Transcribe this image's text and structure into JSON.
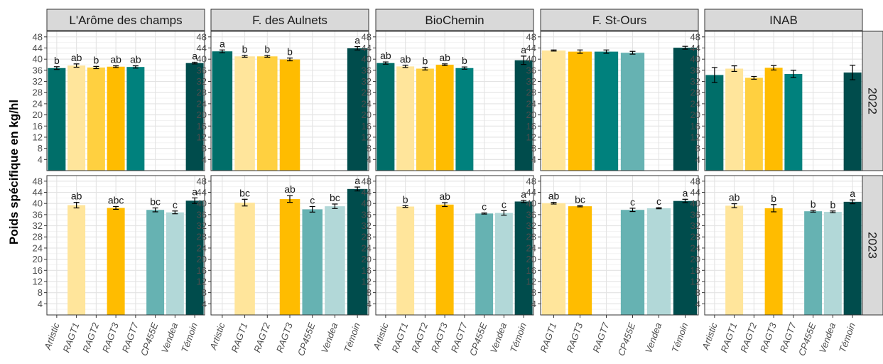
{
  "chart_data": {
    "type": "bar",
    "ylabel": "Poids spécifique en kg/hl",
    "ylim": [
      0,
      50
    ],
    "yticks": [
      4,
      8,
      12,
      16,
      20,
      24,
      28,
      32,
      36,
      40,
      44,
      48
    ],
    "grid": true,
    "columns": [
      "L'Arôme des champs",
      "F. des Aulnets",
      "BioChemin",
      "F. St-Ours",
      "INAB"
    ],
    "rows": [
      "2022",
      "2023"
    ],
    "varieties_by_column": [
      [
        "Artistic",
        "RAGT1",
        "RAGT2",
        "RAGT3",
        "RAGT7",
        "CP455E",
        "Vendea",
        "Témoin"
      ],
      [
        "Artistic",
        "RAGT1",
        "RAGT2",
        "RAGT3",
        "CP455E",
        "Vendea",
        "Témoin"
      ],
      [
        "Artistic",
        "RAGT1",
        "RAGT2",
        "RAGT3",
        "RAGT7",
        "CP455E",
        "Vendea",
        "Témoin"
      ],
      [
        "RAGT1",
        "RAGT3",
        "RAGT7",
        "CP455E",
        "Vendea",
        "Témoin"
      ],
      [
        "Artistic",
        "RAGT1",
        "RAGT2",
        "RAGT3",
        "RAGT7",
        "CP455E",
        "Vendea",
        "Témoin"
      ]
    ],
    "colors": {
      "Artistic": "#006e69",
      "RAGT1": "#ffe59b",
      "RAGT2": "#ffd040",
      "RAGT3": "#ffbc00",
      "RAGT7": "#00817d",
      "CP455E": "#66b2b2",
      "Vendea": "#b2d8d8",
      "Témoin": "#004c4c"
    },
    "panels": [
      {
        "column": 0,
        "row": 0,
        "bars": [
          {
            "variety": "Artistic",
            "value": 36.8,
            "err": 0.5,
            "label": "b"
          },
          {
            "variety": "RAGT1",
            "value": 37.7,
            "err": 0.6,
            "label": "ab"
          },
          {
            "variety": "RAGT2",
            "value": 37.0,
            "err": 0.4,
            "label": "b"
          },
          {
            "variety": "RAGT3",
            "value": 37.3,
            "err": 0.3,
            "label": "ab"
          },
          {
            "variety": "RAGT7",
            "value": 37.2,
            "err": 0.4,
            "label": "ab"
          },
          {
            "variety": "Témoin",
            "value": 38.6,
            "err": 0.3,
            "label": "a"
          }
        ]
      },
      {
        "column": 1,
        "row": 0,
        "bars": [
          {
            "variety": "Artistic",
            "value": 42.8,
            "err": 0.5,
            "label": "a"
          },
          {
            "variety": "RAGT1",
            "value": 41.0,
            "err": 0.3,
            "label": "b"
          },
          {
            "variety": "RAGT2",
            "value": 41.0,
            "err": 0.3,
            "label": "b"
          },
          {
            "variety": "RAGT3",
            "value": 39.9,
            "err": 0.5,
            "label": "b"
          },
          {
            "variety": "Témoin",
            "value": 43.9,
            "err": 0.6,
            "label": "a"
          }
        ]
      },
      {
        "column": 2,
        "row": 0,
        "bars": [
          {
            "variety": "Artistic",
            "value": 38.6,
            "err": 0.4,
            "label": "ab"
          },
          {
            "variety": "RAGT1",
            "value": 37.4,
            "err": 0.4,
            "label": "ab"
          },
          {
            "variety": "RAGT2",
            "value": 36.6,
            "err": 0.5,
            "label": "b"
          },
          {
            "variety": "RAGT3",
            "value": 38.0,
            "err": 0.3,
            "label": "ab"
          },
          {
            "variety": "RAGT7",
            "value": 36.8,
            "err": 0.4,
            "label": "b"
          },
          {
            "variety": "Témoin",
            "value": 39.6,
            "err": 1.5,
            "label": "a"
          }
        ]
      },
      {
        "column": 3,
        "row": 0,
        "bars": [
          {
            "variety": "RAGT1",
            "value": 43.1,
            "err": 0.2,
            "label": ""
          },
          {
            "variety": "RAGT3",
            "value": 42.7,
            "err": 0.6,
            "label": ""
          },
          {
            "variety": "RAGT7",
            "value": 42.7,
            "err": 0.6,
            "label": ""
          },
          {
            "variety": "CP455E",
            "value": 42.3,
            "err": 0.5,
            "label": ""
          },
          {
            "variety": "Témoin",
            "value": 44.1,
            "err": 0.5,
            "label": ""
          }
        ]
      },
      {
        "column": 4,
        "row": 0,
        "bars": [
          {
            "variety": "Artistic",
            "value": 34.3,
            "err": 2.7,
            "label": ""
          },
          {
            "variety": "RAGT1",
            "value": 36.6,
            "err": 1.0,
            "label": ""
          },
          {
            "variety": "RAGT2",
            "value": 33.3,
            "err": 0.5,
            "label": ""
          },
          {
            "variety": "RAGT3",
            "value": 36.9,
            "err": 0.8,
            "label": ""
          },
          {
            "variety": "RAGT7",
            "value": 34.7,
            "err": 1.3,
            "label": ""
          },
          {
            "variety": "Témoin",
            "value": 35.2,
            "err": 2.6,
            "label": ""
          }
        ]
      },
      {
        "column": 0,
        "row": 1,
        "bars": [
          {
            "variety": "RAGT1",
            "value": 39.4,
            "err": 1.0,
            "label": "ab"
          },
          {
            "variety": "RAGT3",
            "value": 38.4,
            "err": 0.5,
            "label": "abc"
          },
          {
            "variety": "CP455E",
            "value": 37.7,
            "err": 0.7,
            "label": "bc"
          },
          {
            "variety": "Vendea",
            "value": 36.8,
            "err": 0.5,
            "label": "c"
          },
          {
            "variety": "Témoin",
            "value": 41.0,
            "err": 1.0,
            "label": "a"
          }
        ]
      },
      {
        "column": 1,
        "row": 1,
        "bars": [
          {
            "variety": "RAGT1",
            "value": 40.3,
            "err": 1.2,
            "label": "bc"
          },
          {
            "variety": "RAGT3",
            "value": 41.6,
            "err": 1.2,
            "label": "ab"
          },
          {
            "variety": "CP455E",
            "value": 37.9,
            "err": 1.0,
            "label": "c"
          },
          {
            "variety": "Vendea",
            "value": 39.0,
            "err": 0.8,
            "label": "bc"
          },
          {
            "variety": "Témoin",
            "value": 45.2,
            "err": 0.7,
            "label": "a"
          }
        ]
      },
      {
        "column": 2,
        "row": 1,
        "bars": [
          {
            "variety": "RAGT1",
            "value": 38.9,
            "err": 0.3,
            "label": "b"
          },
          {
            "variety": "RAGT3",
            "value": 39.6,
            "err": 0.7,
            "label": "ab"
          },
          {
            "variety": "CP455E",
            "value": 36.4,
            "err": 0.2,
            "label": "c"
          },
          {
            "variety": "Vendea",
            "value": 36.6,
            "err": 0.8,
            "label": "c"
          },
          {
            "variety": "Témoin",
            "value": 40.7,
            "err": 0.4,
            "label": "a"
          }
        ]
      },
      {
        "column": 3,
        "row": 1,
        "bars": [
          {
            "variety": "RAGT1",
            "value": 40.1,
            "err": 0.3,
            "label": "ab"
          },
          {
            "variety": "RAGT3",
            "value": 39.0,
            "err": 0.2,
            "label": "bc"
          },
          {
            "variety": "CP455E",
            "value": 37.7,
            "err": 0.6,
            "label": "c"
          },
          {
            "variety": "Vendea",
            "value": 38.3,
            "err": 0.2,
            "label": "c"
          },
          {
            "variety": "Témoin",
            "value": 40.9,
            "err": 0.6,
            "label": "a"
          }
        ]
      },
      {
        "column": 4,
        "row": 1,
        "bars": [
          {
            "variety": "RAGT1",
            "value": 39.2,
            "err": 0.7,
            "label": "ab"
          },
          {
            "variety": "RAGT3",
            "value": 38.3,
            "err": 1.3,
            "label": "b"
          },
          {
            "variety": "CP455E",
            "value": 37.2,
            "err": 0.3,
            "label": "b"
          },
          {
            "variety": "Vendea",
            "value": 37.0,
            "err": 0.3,
            "label": "b"
          },
          {
            "variety": "Témoin",
            "value": 40.6,
            "err": 0.7,
            "label": "a"
          }
        ]
      }
    ]
  }
}
